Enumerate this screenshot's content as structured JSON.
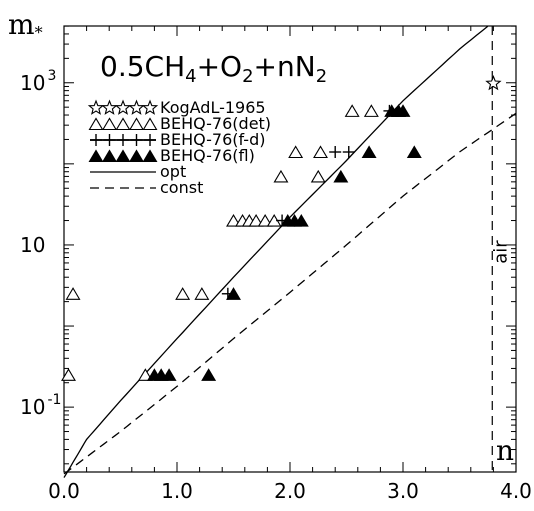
{
  "chart_data": {
    "type": "scatter",
    "title": [
      "0.5CH",
      "4",
      "+O",
      "2",
      "+nN",
      "2"
    ],
    "ylabel": "m",
    "ylabel_sub": "*",
    "xlabel": "n",
    "xlim": [
      0.0,
      4.0
    ],
    "ylim_log10": [
      -1.8,
      3.7
    ],
    "yscale": "log",
    "x_ticks": [
      0.0,
      1.0,
      2.0,
      3.0,
      4.0
    ],
    "x_tick_labels": [
      "0.0",
      "1.0",
      "2.0",
      "3.0",
      "4.0"
    ],
    "y_ticks": [
      {
        "value": 0.1,
        "base": "10",
        "exp": "-1"
      },
      {
        "value": 10,
        "base": "10",
        "exp": ""
      },
      {
        "value": 1000,
        "base": "10",
        "exp": "3"
      }
    ],
    "vline": {
      "x": 3.79,
      "label": "air"
    },
    "series": [
      {
        "name": "KogAdL-1965",
        "marker": "star",
        "points": [
          [
            3.8,
            980
          ]
        ]
      },
      {
        "name": "BEHQ-76(det)",
        "marker": "triangle-open",
        "points": [
          [
            0.04,
            0.25
          ],
          [
            0.08,
            2.5
          ],
          [
            0.72,
            0.25
          ],
          [
            1.05,
            2.5
          ],
          [
            1.22,
            2.5
          ],
          [
            1.5,
            20
          ],
          [
            1.58,
            20
          ],
          [
            1.64,
            20
          ],
          [
            1.7,
            20
          ],
          [
            1.78,
            20
          ],
          [
            1.86,
            20
          ],
          [
            1.92,
            70
          ],
          [
            2.05,
            140
          ],
          [
            2.25,
            70
          ],
          [
            2.27,
            140
          ],
          [
            2.55,
            450
          ],
          [
            2.72,
            450
          ],
          [
            2.96,
            450
          ]
        ]
      },
      {
        "name": "BEHQ-76(f-d)",
        "marker": "plus",
        "points": [
          [
            1.45,
            2.5
          ],
          [
            1.93,
            20
          ],
          [
            2.4,
            140
          ],
          [
            2.52,
            140
          ],
          [
            2.88,
            450
          ]
        ]
      },
      {
        "name": "BEHQ-76(fl)",
        "marker": "triangle-filled",
        "points": [
          [
            0.8,
            0.25
          ],
          [
            0.86,
            0.25
          ],
          [
            0.93,
            0.25
          ],
          [
            1.28,
            0.25
          ],
          [
            1.5,
            2.5
          ],
          [
            1.98,
            20
          ],
          [
            2.04,
            20
          ],
          [
            2.1,
            20
          ],
          [
            2.45,
            70
          ],
          [
            2.7,
            140
          ],
          [
            2.9,
            450
          ],
          [
            2.96,
            450
          ],
          [
            3.0,
            450
          ],
          [
            3.1,
            140
          ]
        ]
      },
      {
        "name": "opt",
        "marker": "line-solid",
        "points": [
          [
            0.0,
            0.0135
          ],
          [
            0.2,
            0.04
          ],
          [
            0.5,
            0.12
          ],
          [
            1.0,
            0.7
          ],
          [
            1.5,
            4
          ],
          [
            2.0,
            22
          ],
          [
            2.5,
            110
          ],
          [
            3.0,
            600
          ],
          [
            3.5,
            2600
          ],
          [
            4.0,
            9500
          ]
        ]
      },
      {
        "name": "const",
        "marker": "line-dashed",
        "points": [
          [
            0.0,
            0.015
          ],
          [
            0.5,
            0.05
          ],
          [
            1.0,
            0.18
          ],
          [
            1.5,
            0.7
          ],
          [
            2.0,
            2.6
          ],
          [
            2.5,
            10
          ],
          [
            3.0,
            40
          ],
          [
            3.5,
            140
          ],
          [
            4.0,
            420
          ]
        ]
      }
    ],
    "legend_placement": "top-left",
    "grid": false
  }
}
